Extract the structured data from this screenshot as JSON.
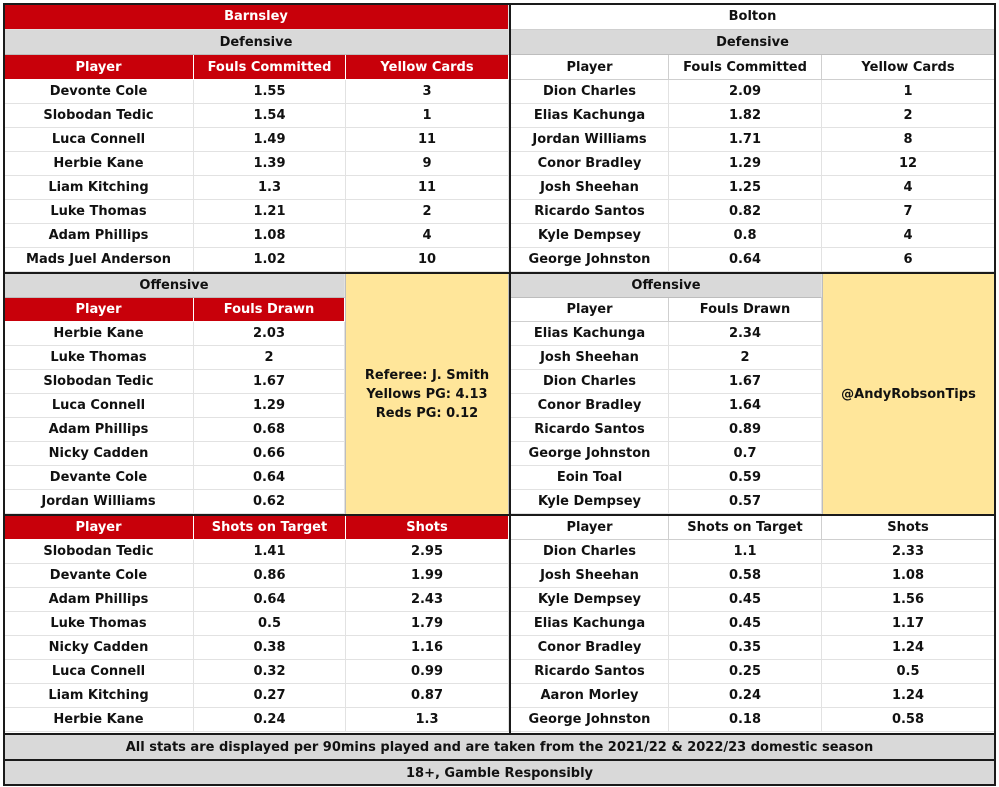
{
  "barnsley": {
    "team": "Barnsley",
    "defensive_label": "Defensive",
    "defensive_headers": [
      "Player",
      "Fouls Committed",
      "Yellow Cards"
    ],
    "defensive_rows": [
      [
        "Devonte Cole",
        "1.55",
        "3"
      ],
      [
        "Slobodan Tedic",
        "1.54",
        "1"
      ],
      [
        "Luca Connell",
        "1.49",
        "11"
      ],
      [
        "Herbie Kane",
        "1.39",
        "9"
      ],
      [
        "Liam Kitching",
        "1.3",
        "11"
      ],
      [
        "Luke Thomas",
        "1.21",
        "2"
      ],
      [
        "Adam Phillips",
        "1.08",
        "4"
      ],
      [
        "Mads Juel Anderson",
        "1.02",
        "10"
      ]
    ],
    "offensive_label": "Offensive",
    "offensive_headers": [
      "Player",
      "Fouls Drawn"
    ],
    "offensive_rows": [
      [
        "Herbie Kane",
        "2.03"
      ],
      [
        "Luke Thomas",
        "2"
      ],
      [
        "Slobodan Tedic",
        "1.67"
      ],
      [
        "Luca Connell",
        "1.29"
      ],
      [
        "Adam Phillips",
        "0.68"
      ],
      [
        "Nicky Cadden",
        "0.66"
      ],
      [
        "Devante Cole",
        "0.64"
      ],
      [
        "Jordan Williams",
        "0.62"
      ]
    ],
    "shots_headers": [
      "Player",
      "Shots on Target",
      "Shots"
    ],
    "shots_rows": [
      [
        "Slobodan Tedic",
        "1.41",
        "2.95"
      ],
      [
        "Devante Cole",
        "0.86",
        "1.99"
      ],
      [
        "Adam Phillips",
        "0.64",
        "2.43"
      ],
      [
        "Luke Thomas",
        "0.5",
        "1.79"
      ],
      [
        "Nicky Cadden",
        "0.38",
        "1.16"
      ],
      [
        "Luca Connell",
        "0.32",
        "0.99"
      ],
      [
        "Liam Kitching",
        "0.27",
        "0.87"
      ],
      [
        "Herbie Kane",
        "0.24",
        "1.3"
      ]
    ]
  },
  "bolton": {
    "team": "Bolton",
    "defensive_label": "Defensive",
    "defensive_headers": [
      "Player",
      "Fouls Committed",
      "Yellow Cards"
    ],
    "defensive_rows": [
      [
        "Dion Charles",
        "2.09",
        "1"
      ],
      [
        "Elias Kachunga",
        "1.82",
        "2"
      ],
      [
        "Jordan Williams",
        "1.71",
        "8"
      ],
      [
        "Conor Bradley",
        "1.29",
        "12"
      ],
      [
        "Josh Sheehan",
        "1.25",
        "4"
      ],
      [
        "Ricardo Santos",
        "0.82",
        "7"
      ],
      [
        "Kyle Dempsey",
        "0.8",
        "4"
      ],
      [
        "George Johnston",
        "0.64",
        "6"
      ]
    ],
    "offensive_label": "Offensive",
    "offensive_headers": [
      "Player",
      "Fouls Drawn"
    ],
    "offensive_rows": [
      [
        "Elias Kachunga",
        "2.34"
      ],
      [
        "Josh Sheehan",
        "2"
      ],
      [
        "Dion Charles",
        "1.67"
      ],
      [
        "Conor Bradley",
        "1.64"
      ],
      [
        "Ricardo Santos",
        "0.89"
      ],
      [
        "George Johnston",
        "0.7"
      ],
      [
        "Eoin Toal",
        "0.59"
      ],
      [
        "Kyle Dempsey",
        "0.57"
      ]
    ],
    "shots_headers": [
      "Player",
      "Shots on Target",
      "Shots"
    ],
    "shots_rows": [
      [
        "Dion Charles",
        "1.1",
        "2.33"
      ],
      [
        "Josh Sheehan",
        "0.58",
        "1.08"
      ],
      [
        "Kyle Dempsey",
        "0.45",
        "1.56"
      ],
      [
        "Elias Kachunga",
        "0.45",
        "1.17"
      ],
      [
        "Conor Bradley",
        "0.35",
        "1.24"
      ],
      [
        "Ricardo Santos",
        "0.25",
        "0.5"
      ],
      [
        "Aaron Morley",
        "0.24",
        "1.24"
      ],
      [
        "George Johnston",
        "0.18",
        "0.58"
      ]
    ]
  },
  "referee": {
    "line1": "Referee: J. Smith",
    "line2": "Yellows PG: 4.13",
    "line3": "Reds PG: 0.12"
  },
  "handle": "@AndyRobsonTips",
  "footer": {
    "note": "All stats are displayed per 90mins played and are taken from the 2021/22 & 2022/23 domestic season",
    "disclaimer": "18+, Gamble Responsibly"
  },
  "colors": {
    "barnsley_red": "#c8000a",
    "header_grey": "#d9d9d9",
    "info_yellow": "#ffe69a"
  }
}
